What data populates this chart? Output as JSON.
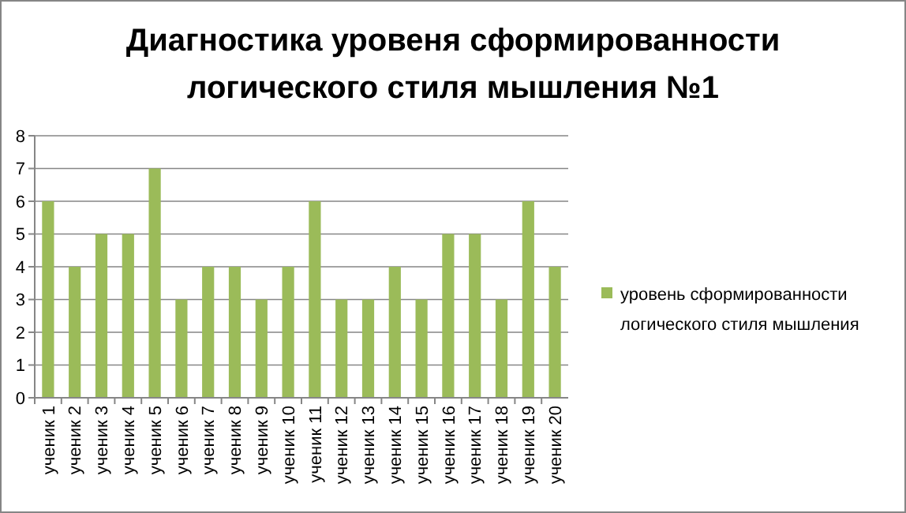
{
  "chart_data": {
    "type": "bar",
    "title": "Диагностика уровеня сформированности логического стиля мышления №1",
    "categories": [
      "ученик 1",
      "ученик 2",
      "ученик 3",
      "ученик 4",
      "ученик 5",
      "ученик 6",
      "ученик 7",
      "ученик 8",
      "ученик 9",
      "ученик 10",
      "ученик 11",
      "ученик 12",
      "ученик 13",
      "ученик 14",
      "ученик 15",
      "ученик 16",
      "ученик 17",
      "ученик 18",
      "ученик 19",
      "ученик 20"
    ],
    "series": [
      {
        "name": "уровень сформированности логического стиля мышления",
        "color": "#9bbb59",
        "values": [
          6,
          4,
          5,
          5,
          7,
          3,
          4,
          4,
          3,
          4,
          6,
          3,
          3,
          4,
          3,
          5,
          5,
          3,
          6,
          4
        ]
      }
    ],
    "ylim": [
      0,
      8
    ],
    "yticks": [
      0,
      1,
      2,
      3,
      4,
      5,
      6,
      7,
      8
    ],
    "grid": "y",
    "legend": "right"
  }
}
